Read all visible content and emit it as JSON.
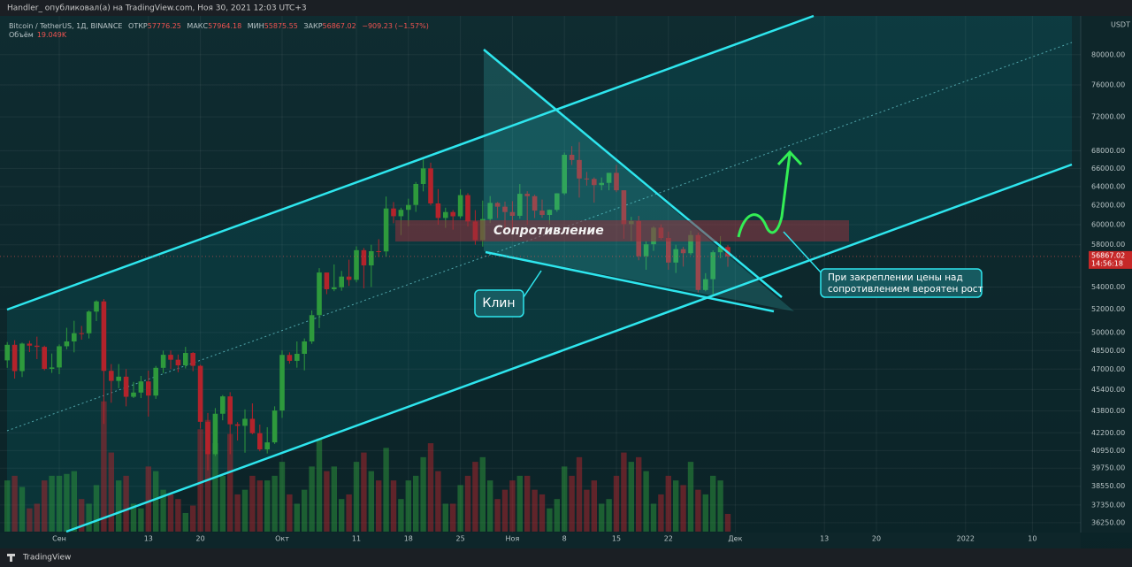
{
  "chart_data": {
    "type": "candlestick",
    "publisher": "Handler_ опубликовал(а) на TradingView.com, Ноя 30, 2021 12:03 UTC+3",
    "symbol": "Bitcoin / TetherUS, 1Д, BINANCE",
    "ohlc_labels": [
      "ОТКР",
      "МАКС",
      "МИН",
      "ЗАКР"
    ],
    "change": "−909.23 (−1.57%)",
    "volume_label": "Объём",
    "volume_value_label": "19.049K",
    "currency": "USDT",
    "countdown": "14:56:18",
    "footer": "TradingView",
    "annotations": {
      "resistance": "Сопротивление",
      "wedge": "Клин",
      "note": [
        "При закреплении цены над",
        "сопротивлением вероятен рост"
      ]
    },
    "log_scale": true,
    "grid": true,
    "up_color": "#2e9a3c",
    "down_color": "#b3232b",
    "ylim": [
      35650,
      86700
    ],
    "yticks": [
      {
        "value": 80000,
        "label": "80000.00"
      },
      {
        "value": 76000,
        "label": "76000.00"
      },
      {
        "value": 72000,
        "label": "72000.00"
      },
      {
        "value": 68000,
        "label": "68000.00"
      },
      {
        "value": 66000,
        "label": "66000.00"
      },
      {
        "value": 64000,
        "label": "64000.00"
      },
      {
        "value": 62000,
        "label": "62000.00"
      },
      {
        "value": 60000,
        "label": "60000.00"
      },
      {
        "value": 58000,
        "label": "58000.00"
      },
      {
        "value": 54000,
        "label": "54000.00"
      },
      {
        "value": 52000,
        "label": "52000.00"
      },
      {
        "value": 50000,
        "label": "50000.00"
      },
      {
        "value": 48500,
        "label": "48500.00"
      },
      {
        "value": 47000,
        "label": "47000.00"
      },
      {
        "value": 45400,
        "label": "45400.00"
      },
      {
        "value": 43800,
        "label": "43800.00"
      },
      {
        "value": 42200,
        "label": "42200.00"
      },
      {
        "value": 40950,
        "label": "40950.00"
      },
      {
        "value": 39750,
        "label": "39750.00"
      },
      {
        "value": 38550,
        "label": "38550.00"
      },
      {
        "value": 37350,
        "label": "37350.00"
      },
      {
        "value": 36250,
        "label": "36250.00"
      }
    ],
    "volume_ylim": [
      0,
      250
    ],
    "categories": [
      null,
      null,
      null,
      null,
      null,
      null,
      null,
      "Сен",
      null,
      null,
      null,
      null,
      null,
      null,
      null,
      null,
      null,
      null,
      null,
      "13",
      null,
      null,
      null,
      null,
      null,
      null,
      "20",
      null,
      null,
      null,
      null,
      null,
      null,
      null,
      null,
      null,
      null,
      "Окт",
      null,
      null,
      null,
      null,
      null,
      null,
      null,
      null,
      null,
      "11",
      null,
      null,
      null,
      null,
      null,
      null,
      "18",
      null,
      null,
      null,
      null,
      null,
      null,
      "25",
      null,
      null,
      null,
      null,
      null,
      null,
      "Ноя",
      null,
      null,
      null,
      null,
      null,
      null,
      "8",
      null,
      null,
      null,
      null,
      null,
      null,
      "15",
      null,
      null,
      null,
      null,
      null,
      null,
      "22",
      null,
      null,
      null,
      null,
      null,
      null,
      null,
      null,
      "Дек",
      null,
      null,
      null,
      null,
      null,
      null,
      null,
      null,
      null,
      null,
      null,
      "13",
      null,
      null,
      null,
      null,
      null,
      null,
      "20",
      null,
      null,
      null,
      null,
      null,
      null,
      null,
      null,
      null,
      null,
      null,
      "2022",
      null,
      null,
      null,
      null,
      null,
      null,
      null,
      null,
      "10",
      null,
      null,
      null,
      null,
      null,
      null
    ],
    "open": [
      47700,
      48970,
      46840,
      49070,
      48900,
      48800,
      47020,
      47130,
      48850,
      49250,
      49940,
      49930,
      51800,
      52700,
      46860,
      46070,
      46400,
      44850,
      45170,
      46030,
      44940,
      47100,
      48150,
      47750,
      47300,
      48300,
      47260,
      42990,
      40700,
      43580,
      44880,
      42810,
      42700,
      43210,
      42170,
      41030,
      41520,
      43820,
      48140,
      47660,
      48230,
      49250,
      51490,
      55340,
      53800,
      53970,
      54960,
      54660,
      57470,
      56010,
      57370,
      57350,
      61670,
      60870,
      61530,
      62040,
      64280,
      66000,
      62200,
      60690,
      61300,
      60860,
      63080,
      60330,
      58450,
      60580,
      62250,
      61860,
      61300,
      60910,
      63220,
      62970,
      61450,
      61000,
      61530,
      63270,
      67530,
      66940,
      64880,
      64830,
      64160,
      64400,
      65500,
      63600,
      60060,
      60370,
      56890,
      58050,
      59700,
      58670,
      56280,
      57570,
      57180,
      58960,
      53730,
      54720,
      57270,
      57776.25,
      null,
      null,
      null,
      null,
      null,
      null,
      null,
      null,
      null,
      null,
      null,
      null,
      null,
      null,
      null,
      null,
      null,
      null,
      null,
      null,
      null,
      null,
      null,
      null,
      null,
      null,
      null,
      null,
      null,
      null,
      null,
      null,
      null,
      null,
      null,
      null,
      null,
      null,
      null,
      null,
      null,
      null,
      null,
      null,
      null,
      null,
      null
    ],
    "high": [
      49200,
      49350,
      49150,
      49310,
      49650,
      48900,
      48250,
      49000,
      50400,
      51000,
      50560,
      51900,
      52800,
      52920,
      47400,
      47400,
      47000,
      45990,
      46460,
      46880,
      47250,
      48490,
      48500,
      48170,
      48800,
      48370,
      47340,
      43640,
      44000,
      44980,
      45200,
      42970,
      43900,
      44350,
      42790,
      42600,
      44130,
      48500,
      48350,
      49250,
      49500,
      51900,
      55750,
      55340,
      56100,
      55490,
      56550,
      57840,
      57680,
      58000,
      58550,
      62930,
      62350,
      61750,
      62700,
      64490,
      67000,
      66640,
      63730,
      61750,
      61500,
      63710,
      63290,
      61500,
      62500,
      62980,
      62350,
      62400,
      62440,
      64270,
      63500,
      63120,
      62600,
      61560,
      63290,
      67790,
      68530,
      69000,
      65600,
      65000,
      64990,
      65500,
      66400,
      63600,
      60800,
      60900,
      58350,
      59850,
      60050,
      59300,
      58000,
      57800,
      59400,
      59200,
      55280,
      57450,
      58860,
      57964.18,
      null,
      null,
      null,
      null,
      null,
      null,
      null,
      null,
      null,
      null,
      null,
      null,
      null,
      null,
      null,
      null,
      null,
      null,
      null,
      null,
      null,
      null,
      null,
      null,
      null,
      null,
      null,
      null,
      null,
      null,
      null,
      null,
      null,
      null,
      null,
      null,
      null,
      null,
      null,
      null,
      null,
      null,
      null,
      null,
      null,
      null,
      null
    ],
    "low": [
      47100,
      46250,
      46370,
      48370,
      47800,
      46900,
      46700,
      46600,
      48600,
      48350,
      49400,
      49500,
      50970,
      42840,
      44400,
      45500,
      44130,
      44750,
      44750,
      43370,
      44690,
      46680,
      47000,
      46750,
      47050,
      46830,
      42500,
      39600,
      40570,
      43100,
      40700,
      41650,
      40800,
      42100,
      40900,
      40750,
      41410,
      43280,
      47430,
      47110,
      46900,
      49050,
      50380,
      53350,
      53620,
      53660,
      54100,
      54420,
      53880,
      54000,
      56820,
      56850,
      60150,
      58960,
      59850,
      61320,
      63480,
      62000,
      60000,
      59680,
      59500,
      60650,
      59820,
      58000,
      57820,
      60170,
      60680,
      59420,
      59400,
      60620,
      60000,
      60680,
      60720,
      60050,
      61330,
      63100,
      66380,
      62820,
      64100,
      62280,
      63600,
      63600,
      63400,
      58600,
      58370,
      56500,
      55600,
      57400,
      58500,
      55600,
      55300,
      55900,
      57000,
      53500,
      53610,
      53330,
      56700,
      55875.55,
      null,
      null,
      null,
      null,
      null,
      null,
      null,
      null,
      null,
      null,
      null,
      null,
      null,
      null,
      null,
      null,
      null,
      null,
      null,
      null,
      null,
      null,
      null,
      null,
      null,
      null,
      null,
      null,
      null,
      null,
      null,
      null,
      null,
      null,
      null,
      null,
      null,
      null,
      null,
      null,
      null,
      null,
      null,
      null,
      null,
      null,
      null
    ],
    "close": [
      48970,
      46840,
      49070,
      48900,
      48800,
      47020,
      47130,
      48850,
      49250,
      49940,
      49930,
      51800,
      52700,
      46860,
      46070,
      46400,
      44850,
      45170,
      46030,
      44940,
      47100,
      48150,
      47750,
      47300,
      48300,
      47260,
      42990,
      40700,
      43580,
      44880,
      42810,
      42700,
      43210,
      42170,
      41030,
      41520,
      43820,
      48140,
      47660,
      48230,
      49250,
      51490,
      55340,
      53800,
      53970,
      54960,
      54660,
      57470,
      56010,
      57370,
      57350,
      61670,
      60870,
      61530,
      62040,
      64280,
      66000,
      62200,
      60690,
      61300,
      60860,
      63080,
      60330,
      58450,
      60580,
      62250,
      61860,
      61300,
      60910,
      63220,
      62970,
      61450,
      61000,
      61530,
      63270,
      67530,
      66940,
      64880,
      64830,
      64160,
      64400,
      65500,
      63600,
      60060,
      60370,
      56890,
      58050,
      59700,
      58670,
      56280,
      57570,
      57180,
      58960,
      53730,
      54720,
      57270,
      57810,
      56867.02,
      null,
      null,
      null,
      null,
      null,
      null,
      null,
      null,
      null,
      null,
      null,
      null,
      null,
      null,
      null,
      null,
      null,
      null,
      null,
      null,
      null,
      null,
      null,
      null,
      null,
      null,
      null,
      null,
      null,
      null,
      null,
      null,
      null,
      null,
      null,
      null,
      null,
      null,
      null,
      null,
      null,
      null,
      null,
      null,
      null,
      null,
      null
    ],
    "volume": [
      55,
      60,
      48,
      25,
      30,
      55,
      60,
      60,
      62,
      65,
      35,
      30,
      50,
      140,
      85,
      55,
      60,
      30,
      25,
      70,
      65,
      45,
      40,
      35,
      20,
      28,
      110,
      120,
      95,
      60,
      105,
      40,
      45,
      60,
      55,
      55,
      60,
      75,
      40,
      30,
      45,
      70,
      100,
      65,
      70,
      35,
      40,
      75,
      85,
      65,
      55,
      90,
      55,
      35,
      55,
      60,
      80,
      95,
      65,
      30,
      30,
      50,
      60,
      75,
      80,
      55,
      35,
      45,
      55,
      60,
      60,
      45,
      40,
      25,
      35,
      70,
      60,
      80,
      45,
      55,
      30,
      35,
      60,
      85,
      75,
      80,
      65,
      30,
      40,
      60,
      55,
      50,
      75,
      45,
      40,
      60,
      55,
      19.049,
      null,
      null,
      null,
      null,
      null,
      null,
      null,
      null,
      null,
      null,
      null,
      null,
      null,
      null,
      null,
      null,
      null,
      null,
      null,
      null,
      null,
      null,
      null,
      null,
      null,
      null,
      null,
      null,
      null,
      null,
      null,
      null,
      null,
      null,
      null,
      null,
      null,
      null,
      null,
      null,
      null,
      null,
      null,
      null,
      null,
      null,
      null
    ]
  }
}
